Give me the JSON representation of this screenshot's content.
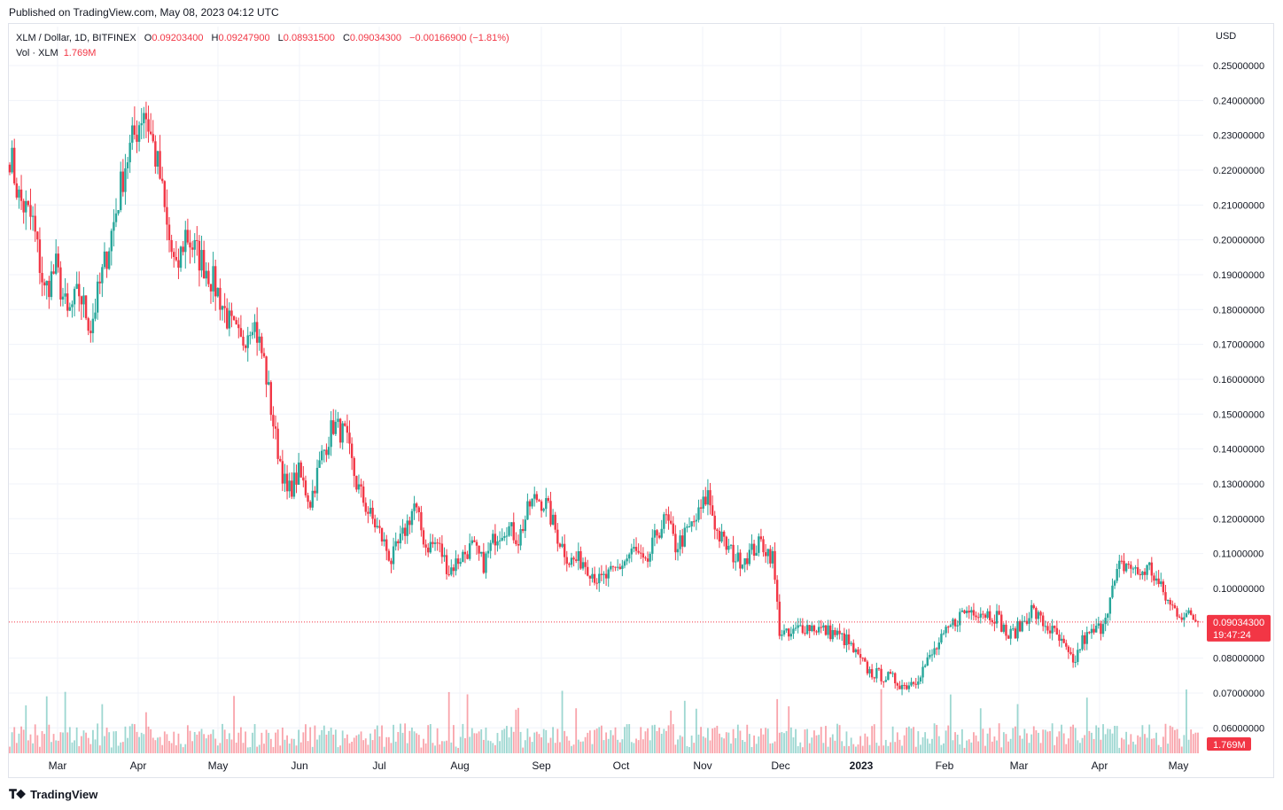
{
  "published": "Published on TradingView.com, May 08, 2023 04:12 UTC",
  "legend": {
    "symbol": "XLM / Dollar, 1D, BITFINEX",
    "open_label": "O",
    "open": "0.09203400",
    "high_label": "H",
    "high": "0.09247900",
    "low_label": "L",
    "low": "0.08931500",
    "close_label": "C",
    "close": "0.09034300",
    "change": "−0.00166900 (−1.81%)",
    "vol_label": "Vol · XLM",
    "vol": "1.769M"
  },
  "currency": "USD",
  "price_badge": {
    "price": "0.09034300",
    "countdown": "19:47:24"
  },
  "vol_badge": "1.769M",
  "footer": {
    "brand": "TradingView"
  },
  "colors": {
    "up": "#26a69a",
    "down": "#f23645",
    "grid": "#f0f3fa",
    "axis_text": "#131722"
  },
  "chart_data": {
    "type": "candlestick",
    "y_ticks": [
      "0.25000000",
      "0.24000000",
      "0.23000000",
      "0.22000000",
      "0.21000000",
      "0.20000000",
      "0.19000000",
      "0.18000000",
      "0.17000000",
      "0.16000000",
      "0.15000000",
      "0.14000000",
      "0.13000000",
      "0.12000000",
      "0.11000000",
      "0.10000000",
      "0.08000000",
      "0.07000000",
      "0.06000000"
    ],
    "x_ticks": [
      "Mar",
      "Apr",
      "May",
      "Jun",
      "Jul",
      "Aug",
      "Sep",
      "Oct",
      "Nov",
      "Dec",
      "2023",
      "Feb",
      "Mar",
      "Apr",
      "May"
    ],
    "ylim": [
      0.058,
      0.253
    ],
    "series_anchor_closes": [
      [
        0,
        0.225
      ],
      [
        4,
        0.212
      ],
      [
        10,
        0.205
      ],
      [
        15,
        0.185
      ],
      [
        20,
        0.192
      ],
      [
        25,
        0.178
      ],
      [
        30,
        0.185
      ],
      [
        35,
        0.175
      ],
      [
        40,
        0.19
      ],
      [
        45,
        0.205
      ],
      [
        50,
        0.222
      ],
      [
        55,
        0.232
      ],
      [
        58,
        0.238
      ],
      [
        60,
        0.233
      ],
      [
        65,
        0.218
      ],
      [
        68,
        0.203
      ],
      [
        72,
        0.19
      ],
      [
        76,
        0.202
      ],
      [
        80,
        0.197
      ],
      [
        85,
        0.192
      ],
      [
        90,
        0.185
      ],
      [
        95,
        0.176
      ],
      [
        100,
        0.17
      ],
      [
        105,
        0.178
      ],
      [
        110,
        0.165
      ],
      [
        115,
        0.143
      ],
      [
        120,
        0.127
      ],
      [
        125,
        0.133
      ],
      [
        130,
        0.125
      ],
      [
        135,
        0.138
      ],
      [
        140,
        0.147
      ],
      [
        145,
        0.144
      ],
      [
        150,
        0.13
      ],
      [
        155,
        0.122
      ],
      [
        160,
        0.116
      ],
      [
        165,
        0.108
      ],
      [
        170,
        0.115
      ],
      [
        175,
        0.124
      ],
      [
        180,
        0.112
      ],
      [
        185,
        0.113
      ],
      [
        190,
        0.105
      ],
      [
        195,
        0.109
      ],
      [
        200,
        0.112
      ],
      [
        205,
        0.107
      ],
      [
        210,
        0.115
      ],
      [
        215,
        0.118
      ],
      [
        220,
        0.114
      ],
      [
        225,
        0.124
      ],
      [
        228,
        0.126
      ],
      [
        232,
        0.124
      ],
      [
        237,
        0.115
      ],
      [
        242,
        0.108
      ],
      [
        248,
        0.108
      ],
      [
        255,
        0.102
      ],
      [
        260,
        0.104
      ],
      [
        265,
        0.107
      ],
      [
        270,
        0.111
      ],
      [
        275,
        0.106
      ],
      [
        280,
        0.116
      ],
      [
        284,
        0.12
      ],
      [
        288,
        0.112
      ],
      [
        292,
        0.115
      ],
      [
        298,
        0.121
      ],
      [
        302,
        0.127
      ],
      [
        306,
        0.116
      ],
      [
        310,
        0.112
      ],
      [
        315,
        0.108
      ],
      [
        320,
        0.11
      ],
      [
        325,
        0.113
      ],
      [
        330,
        0.109
      ],
      [
        333,
        0.088
      ],
      [
        337,
        0.086
      ],
      [
        342,
        0.089
      ],
      [
        347,
        0.089
      ],
      [
        352,
        0.088
      ],
      [
        357,
        0.087
      ],
      [
        362,
        0.085
      ],
      [
        367,
        0.08
      ],
      [
        372,
        0.076
      ],
      [
        377,
        0.075
      ],
      [
        382,
        0.074
      ],
      [
        387,
        0.072
      ],
      [
        392,
        0.074
      ],
      [
        397,
        0.079
      ],
      [
        402,
        0.084
      ],
      [
        407,
        0.089
      ],
      [
        412,
        0.093
      ],
      [
        417,
        0.094
      ],
      [
        422,
        0.093
      ],
      [
        427,
        0.092
      ],
      [
        432,
        0.086
      ],
      [
        437,
        0.089
      ],
      [
        442,
        0.094
      ],
      [
        447,
        0.09
      ],
      [
        452,
        0.087
      ],
      [
        457,
        0.082
      ],
      [
        460,
        0.078
      ],
      [
        464,
        0.085
      ],
      [
        468,
        0.087
      ],
      [
        472,
        0.089
      ],
      [
        476,
        0.097
      ],
      [
        480,
        0.106
      ],
      [
        484,
        0.107
      ],
      [
        488,
        0.104
      ],
      [
        493,
        0.106
      ],
      [
        497,
        0.101
      ],
      [
        502,
        0.095
      ],
      [
        506,
        0.093
      ],
      [
        510,
        0.092
      ],
      [
        514,
        0.091
      ]
    ],
    "notable": {
      "high": 0.241,
      "low": 0.071,
      "last": 0.090343
    }
  }
}
